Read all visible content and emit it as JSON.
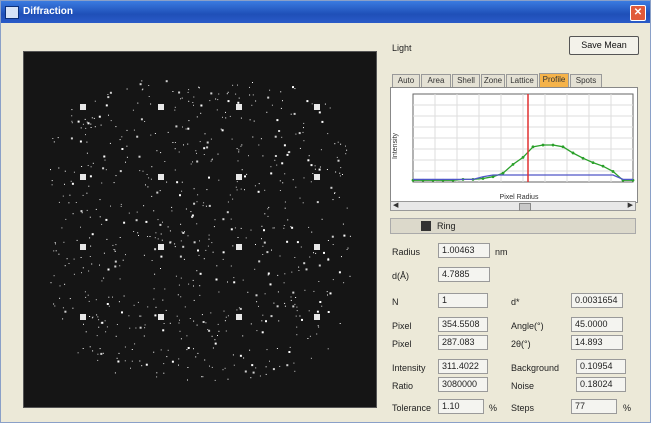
{
  "window": {
    "title": "Diffraction"
  },
  "top_panel": {
    "label": "Light",
    "button_label": "Save Mean"
  },
  "tabs": [
    "Auto",
    "Area",
    "Shell",
    "Zone",
    "Lattice",
    "Profile",
    "Spots"
  ],
  "active_tab": 5,
  "chart_data": {
    "type": "line",
    "title": "",
    "xlabel": "Pixel Radius",
    "ylabel": "Intensity",
    "ylim": [
      0,
      100
    ],
    "series": [
      {
        "values": [
          2,
          2,
          2,
          2,
          2,
          3,
          3,
          4,
          6,
          10,
          20,
          28,
          40,
          42,
          42,
          40,
          33,
          27,
          22,
          18,
          12,
          2,
          2
        ]
      },
      {
        "values": [
          3,
          3,
          3,
          3,
          3,
          3,
          3,
          6,
          8,
          8,
          8,
          8,
          8,
          8,
          8,
          8,
          8,
          8,
          8,
          8,
          8,
          3,
          3
        ]
      }
    ],
    "marker_x": 11.5,
    "grid": true,
    "colors": {
      "green": "#2aa02a",
      "blue": "#4f56c8",
      "marker": "#e03030"
    }
  },
  "section": {
    "title": "Ring"
  },
  "fields": {
    "radius_label": "Radius",
    "radius_value": "1.00463",
    "radius_unit": "nm",
    "d_label": "d(Å)",
    "d_value": "4.7885",
    "n_label": "N",
    "n_value": "1",
    "dstar_label": "d*",
    "dstar_value": "0.0031654",
    "px_label": "Pixel",
    "px_value": "354.5508",
    "angle_label": "Angle(°)",
    "angle_value": "45.0000",
    "py_label": "Pixel",
    "py_value": "287.083",
    "twotheta_label": "2θ(°)",
    "twotheta_value": "14.893",
    "intensity_label": "Intensity",
    "intensity_value": "311.4022",
    "bkg_label": "Background",
    "bkg_value": "0.10954",
    "ratio_label": "Ratio",
    "ratio_value": "3080000",
    "noise_label": "Noise",
    "noise_value": "0.18024",
    "tol_label": "Tolerance",
    "tol_value": "1.10",
    "tol_unit": "%",
    "step_label": "Steps",
    "step_value": "77",
    "step_unit": "%"
  }
}
